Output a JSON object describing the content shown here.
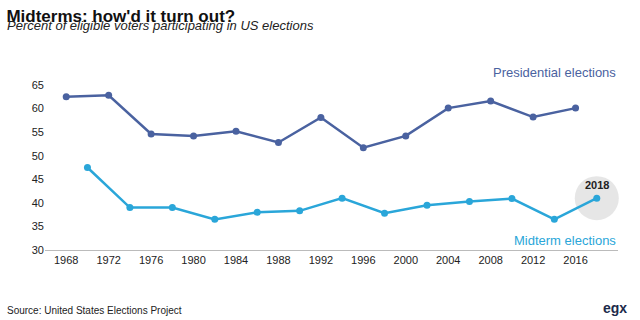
{
  "chart_data": {
    "type": "line",
    "title": "Midterms: how'd it turn out?",
    "subtitle": "Percent of eligible voters participating in US elections",
    "source": "Source: United States Elections Project",
    "logo": "egx",
    "series": [
      {
        "name": "Presidential elections",
        "color": "#4a62a0",
        "marker": "circle",
        "line_style": "solid",
        "x": [
          1968,
          1972,
          1976,
          1980,
          1984,
          1988,
          1992,
          1996,
          2000,
          2004,
          2008,
          2012,
          2016
        ],
        "values": [
          62.5,
          62.8,
          54.6,
          54.2,
          55.2,
          52.8,
          58.1,
          51.7,
          54.2,
          60.1,
          61.6,
          58.2,
          60.1
        ]
      },
      {
        "name": "Midterm elections",
        "color": "#2aa6d9",
        "marker": "circle",
        "line_style": "solid",
        "x": [
          1970,
          1974,
          1978,
          1982,
          1986,
          1990,
          1994,
          1998,
          2002,
          2006,
          2010,
          2014,
          2018
        ],
        "values": [
          47.5,
          39.0,
          39.0,
          36.5,
          38.0,
          38.3,
          41.0,
          37.8,
          39.5,
          40.3,
          40.9,
          36.5,
          41.0
        ]
      }
    ],
    "annotations": [
      {
        "text": "2018",
        "x": 2018
      }
    ],
    "xlim": [
      1966,
      2020
    ],
    "xticks": [
      1968,
      1972,
      1976,
      1980,
      1984,
      1988,
      1992,
      1996,
      2000,
      2004,
      2008,
      2012,
      2016
    ],
    "ylim": [
      30,
      65
    ],
    "yticks": [
      30,
      35,
      40,
      45,
      50,
      55,
      60,
      65
    ],
    "grid": false
  }
}
